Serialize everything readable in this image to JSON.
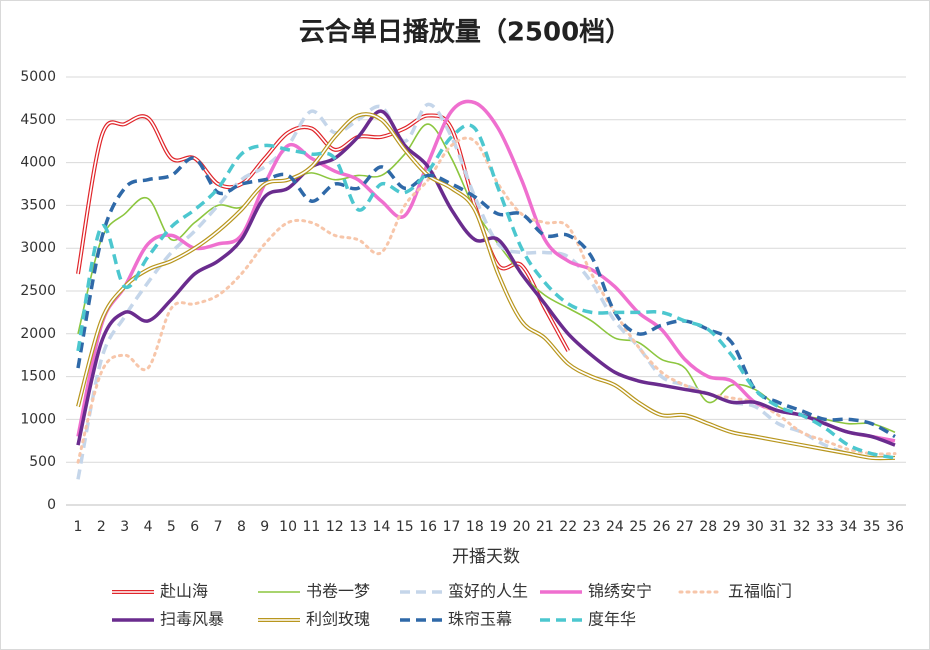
{
  "chart_data": {
    "type": "line",
    "title": "云合单日播放量（2500档）",
    "x_label": "开播天数",
    "x": [
      1,
      2,
      3,
      4,
      5,
      6,
      7,
      8,
      9,
      10,
      11,
      12,
      13,
      14,
      15,
      16,
      17,
      18,
      19,
      20,
      21,
      22,
      23,
      24,
      25,
      26,
      27,
      28,
      29,
      30,
      31,
      32,
      33,
      34,
      35,
      36
    ],
    "xlim": [
      1,
      36
    ],
    "ylim": [
      0,
      5000
    ],
    "yticks": [
      0,
      500,
      1000,
      1500,
      2000,
      2500,
      3000,
      3500,
      4000,
      4500,
      5000
    ],
    "grid": true,
    "series": [
      {
        "name": "赴山海",
        "color": "#e0262b",
        "line_style": "double",
        "values": [
          2700,
          4300,
          4450,
          4520,
          4050,
          4050,
          3750,
          3750,
          4050,
          4350,
          4400,
          4150,
          4300,
          4300,
          4400,
          4550,
          4400,
          3500,
          2800,
          2800,
          2300,
          1800,
          null,
          null,
          null,
          null,
          null,
          null,
          null,
          null,
          null,
          null,
          null,
          null,
          null,
          null
        ]
      },
      {
        "name": "书卷一梦",
        "color": "#8cc63f",
        "line_style": "solid",
        "values": [
          2000,
          3100,
          3400,
          3580,
          3100,
          3300,
          3500,
          3480,
          3750,
          3800,
          3880,
          3800,
          3850,
          3850,
          4100,
          4450,
          4050,
          3450,
          3050,
          2700,
          2450,
          2300,
          2150,
          1950,
          1900,
          1700,
          1600,
          1200,
          1400,
          1350,
          1150,
          1050,
          1000,
          950,
          950,
          850
        ]
      },
      {
        "name": "蛮好的人生",
        "color": "#c5d6ea",
        "line_style": "dashed",
        "values": [
          300,
          1700,
          2200,
          2600,
          2950,
          3200,
          3500,
          3800,
          3950,
          4200,
          4600,
          4350,
          4500,
          4650,
          4250,
          4680,
          4300,
          3600,
          3050,
          2950,
          2950,
          2900,
          2600,
          2150,
          1850,
          1500,
          1400,
          1300,
          1200,
          1150,
          950,
          850,
          700,
          600,
          550,
          550
        ]
      },
      {
        "name": "锦绣安宁",
        "color": "#ef6fcf",
        "line_style": "thick",
        "values": [
          800,
          2100,
          2550,
          3050,
          3150,
          3000,
          3050,
          3150,
          3750,
          4200,
          4050,
          3900,
          3800,
          3550,
          3380,
          4000,
          4600,
          4700,
          4400,
          3800,
          3100,
          2850,
          2750,
          2550,
          2250,
          2050,
          1700,
          1500,
          1450,
          1200,
          1100,
          1050,
          950,
          850,
          800,
          750
        ]
      },
      {
        "name": "五福临门",
        "color": "#f7c6aa",
        "line_style": "dotted",
        "values": [
          500,
          1550,
          1750,
          1600,
          2300,
          2350,
          2450,
          2700,
          3050,
          3300,
          3300,
          3150,
          3100,
          2950,
          3500,
          3800,
          4200,
          4250,
          3750,
          3400,
          3300,
          3250,
          2700,
          2250,
          1850,
          1550,
          1400,
          1300,
          1250,
          1200,
          1050,
          850,
          750,
          650,
          600,
          600
        ]
      },
      {
        "name": "扫毒风暴",
        "color": "#6a2c8e",
        "line_style": "thick",
        "values": [
          700,
          1900,
          2250,
          2150,
          2400,
          2700,
          2850,
          3100,
          3600,
          3700,
          3950,
          4050,
          4300,
          4600,
          4200,
          3950,
          3450,
          3100,
          3100,
          2700,
          2350,
          2000,
          1750,
          1550,
          1450,
          1400,
          1350,
          1300,
          1200,
          1200,
          1100,
          1050,
          950,
          850,
          800,
          700
        ]
      },
      {
        "name": "利剑玫瑰",
        "color": "#b8961e",
        "line_style": "double",
        "values": [
          1150,
          2150,
          2550,
          2750,
          2850,
          3000,
          3200,
          3450,
          3750,
          3800,
          3950,
          4300,
          4550,
          4500,
          4150,
          3850,
          3700,
          3450,
          2700,
          2150,
          1950,
          1650,
          1500,
          1400,
          1200,
          1050,
          1050,
          950,
          850,
          800,
          750,
          700,
          650,
          600,
          550,
          550
        ]
      },
      {
        "name": "珠帘玉幕",
        "color": "#2f69a8",
        "line_style": "dashed",
        "values": [
          1600,
          3100,
          3700,
          3800,
          3850,
          4050,
          3650,
          3750,
          3800,
          3850,
          3550,
          3750,
          3700,
          3950,
          3700,
          3850,
          3750,
          3600,
          3400,
          3400,
          3150,
          3150,
          2900,
          2250,
          2000,
          2100,
          2150,
          2050,
          1900,
          1350,
          1200,
          1100,
          1000,
          1000,
          950,
          800
        ]
      },
      {
        "name": "度年华",
        "color": "#4cc7cf",
        "line_style": "dashed",
        "values": [
          1800,
          3250,
          2550,
          2900,
          3250,
          3450,
          3700,
          4100,
          4200,
          4150,
          4100,
          4050,
          3450,
          3750,
          3650,
          3900,
          4300,
          4400,
          3700,
          3000,
          2600,
          2350,
          2250,
          2250,
          2250,
          2250,
          2150,
          2050,
          1750,
          1350,
          1150,
          1050,
          900,
          700,
          600,
          550
        ]
      }
    ]
  }
}
